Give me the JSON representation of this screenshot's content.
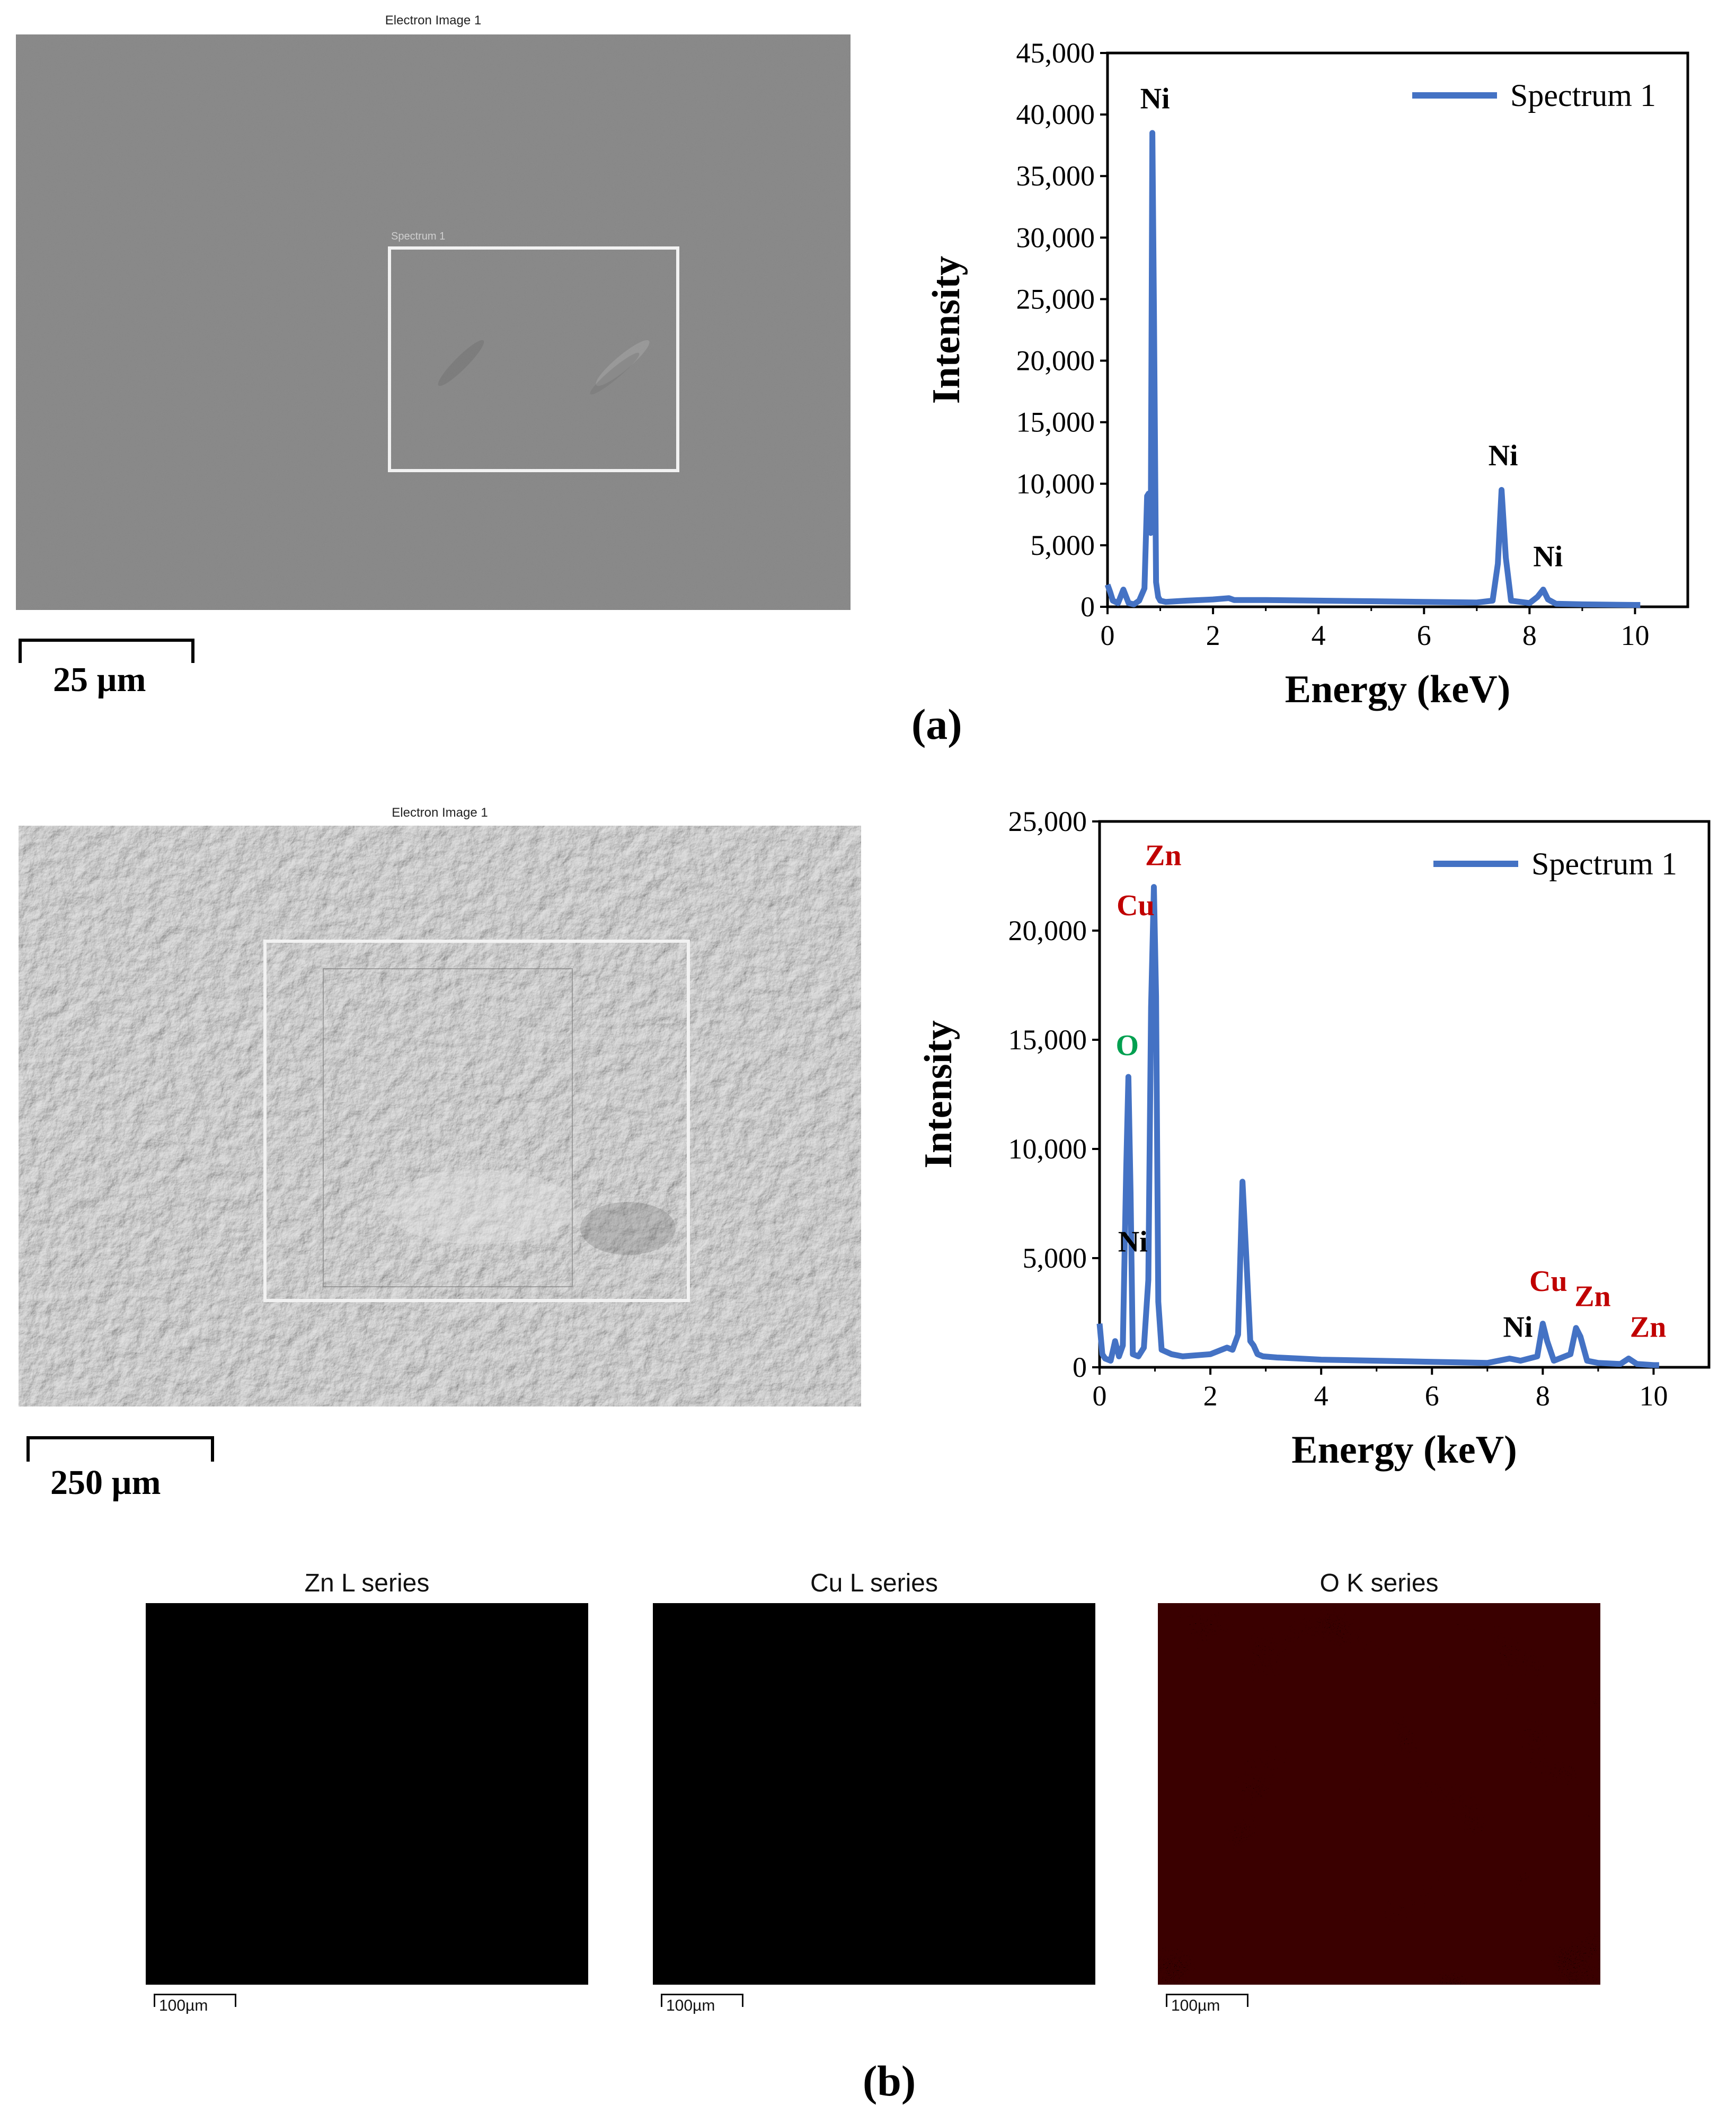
{
  "panel_a": {
    "sem": {
      "title": "Electron Image 1",
      "roi_label": "Spectrum 1",
      "scale_label": "25 µm"
    },
    "letter": "(a)"
  },
  "panel_b": {
    "sem": {
      "title": "Electron Image 1",
      "scale_label": "250 µm"
    },
    "letter": "(b)"
  },
  "maps": [
    {
      "title": "Zn L series",
      "scale": "100µm",
      "color": "#c020c8"
    },
    {
      "title": "Cu L series",
      "scale": "100µm",
      "color": "#20c8c8"
    },
    {
      "title": "O K series",
      "scale": "100µm",
      "color": "#e01010"
    }
  ],
  "chart_data": [
    {
      "type": "line",
      "xlabel": "Energy (keV)",
      "ylabel": "Intensity",
      "xlim": [
        0,
        11
      ],
      "ylim": [
        0,
        45000
      ],
      "xticks": [
        0,
        2,
        4,
        6,
        8,
        10
      ],
      "yticks": [
        0,
        5000,
        10000,
        15000,
        20000,
        25000,
        30000,
        35000,
        40000,
        45000
      ],
      "ytick_labels": [
        "0",
        "5,000",
        "10,000",
        "15,000",
        "20,000",
        "25,000",
        "30,000",
        "35,000",
        "40,000",
        "45,000"
      ],
      "legend_position": "top-right",
      "series": [
        {
          "name": "Spectrum 1",
          "color": "#4472c4",
          "x": [
            0,
            0.05,
            0.1,
            0.2,
            0.3,
            0.4,
            0.5,
            0.6,
            0.7,
            0.75,
            0.78,
            0.82,
            0.85,
            0.88,
            0.92,
            0.96,
            1.0,
            1.1,
            1.5,
            2.0,
            2.3,
            2.4,
            3,
            4,
            5,
            6,
            7,
            7.3,
            7.4,
            7.47,
            7.55,
            7.65,
            8.0,
            8.15,
            8.26,
            8.35,
            8.5,
            9,
            10,
            10.1
          ],
          "y": [
            1800,
            1200,
            500,
            300,
            1400,
            300,
            200,
            500,
            1500,
            9000,
            9200,
            6000,
            38500,
            24000,
            2000,
            800,
            500,
            400,
            500,
            600,
            700,
            550,
            550,
            500,
            450,
            400,
            350,
            500,
            3500,
            9500,
            4000,
            500,
            300,
            800,
            1400,
            600,
            250,
            200,
            150,
            150
          ]
        }
      ],
      "annotations": [
        {
          "text": "Ni",
          "x": 0.9,
          "y": 40500,
          "color": "#000000"
        },
        {
          "text": "Ni",
          "x": 7.5,
          "y": 11500,
          "color": "#000000"
        },
        {
          "text": "Ni",
          "x": 8.35,
          "y": 3300,
          "color": "#000000"
        }
      ]
    },
    {
      "type": "line",
      "xlabel": "Energy (keV)",
      "ylabel": "Intensity",
      "xlim": [
        0,
        11
      ],
      "ylim": [
        0,
        25000
      ],
      "xticks": [
        0,
        2,
        4,
        6,
        8,
        10
      ],
      "yticks": [
        0,
        5000,
        10000,
        15000,
        20000,
        25000
      ],
      "ytick_labels": [
        "0",
        "5,000",
        "10,000",
        "15,000",
        "20,000",
        "25,000"
      ],
      "legend_position": "top-right",
      "series": [
        {
          "name": "Spectrum 1",
          "color": "#4472c4",
          "x": [
            0,
            0.05,
            0.1,
            0.2,
            0.28,
            0.35,
            0.42,
            0.48,
            0.52,
            0.56,
            0.6,
            0.7,
            0.8,
            0.88,
            0.93,
            0.98,
            1.02,
            1.06,
            1.12,
            1.3,
            1.5,
            2.0,
            2.2,
            2.3,
            2.4,
            2.5,
            2.58,
            2.65,
            2.72,
            2.78,
            2.85,
            2.95,
            3.2,
            3.6,
            4,
            5,
            6,
            7,
            7.4,
            7.6,
            7.9,
            8.0,
            8.08,
            8.2,
            8.5,
            8.6,
            8.68,
            8.8,
            9.0,
            9.4,
            9.55,
            9.7,
            10,
            10.1
          ],
          "y": [
            2000,
            600,
            400,
            300,
            1200,
            500,
            1000,
            9000,
            13300,
            8000,
            600,
            500,
            900,
            4000,
            16500,
            22000,
            17000,
            3000,
            800,
            600,
            500,
            600,
            800,
            900,
            800,
            1500,
            8500,
            5000,
            1200,
            1000,
            600,
            500,
            450,
            400,
            350,
            300,
            250,
            200,
            400,
            300,
            500,
            2000,
            1200,
            300,
            600,
            1800,
            1400,
            300,
            200,
            150,
            400,
            150,
            100,
            100
          ]
        }
      ],
      "annotations": [
        {
          "text": "Zn",
          "x": 1.15,
          "y": 23000,
          "color": "#c00000"
        },
        {
          "text": "Cu",
          "x": 0.65,
          "y": 20700,
          "color": "#c00000"
        },
        {
          "text": "O",
          "x": 0.5,
          "y": 14300,
          "color": "#00a050"
        },
        {
          "text": "Ni",
          "x": 0.6,
          "y": 5300,
          "color": "#000000"
        },
        {
          "text": "Cu",
          "x": 8.1,
          "y": 3500,
          "color": "#c00000"
        },
        {
          "text": "Zn",
          "x": 8.9,
          "y": 2800,
          "color": "#c00000"
        },
        {
          "text": "Ni",
          "x": 7.55,
          "y": 1400,
          "color": "#000000"
        },
        {
          "text": "Zn",
          "x": 9.9,
          "y": 1400,
          "color": "#c00000"
        }
      ]
    }
  ]
}
